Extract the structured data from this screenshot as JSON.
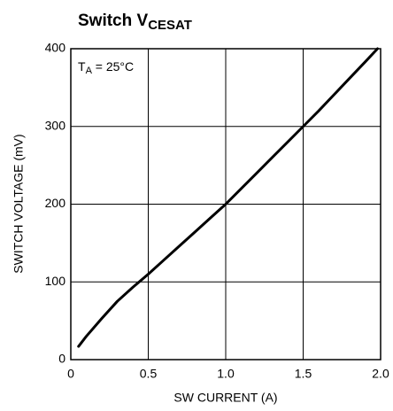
{
  "chart_data": {
    "type": "line",
    "title": "Switch V",
    "title_subscript": "CESAT",
    "x_label": "SW CURRENT (A)",
    "y_label": "SWITCH VOLTAGE (mV)",
    "annotation": {
      "text": "T",
      "subscript": "A",
      "rest": " = 25°C"
    },
    "x": [
      0.05,
      0.1,
      0.2,
      0.3,
      0.4,
      0.5,
      0.6,
      0.7,
      0.8,
      0.9,
      1.0,
      1.1,
      1.2,
      1.3,
      1.4,
      1.5,
      1.6,
      1.7,
      1.8,
      1.9,
      1.98
    ],
    "values": [
      17,
      30,
      53,
      75,
      93,
      110,
      128,
      146,
      164,
      182,
      200,
      220,
      240,
      260,
      280,
      300,
      320,
      341,
      362,
      383,
      400
    ],
    "color": "#000000",
    "xlim": [
      0,
      2
    ],
    "ylim": [
      0,
      400
    ],
    "xticks": [
      0,
      0.5,
      {
        "value": 1,
        "label": "1.0"
      },
      1.5,
      {
        "value": 2,
        "label": "2.0"
      }
    ],
    "yticks": [
      0,
      100,
      200,
      300,
      400
    ],
    "grid": true
  }
}
